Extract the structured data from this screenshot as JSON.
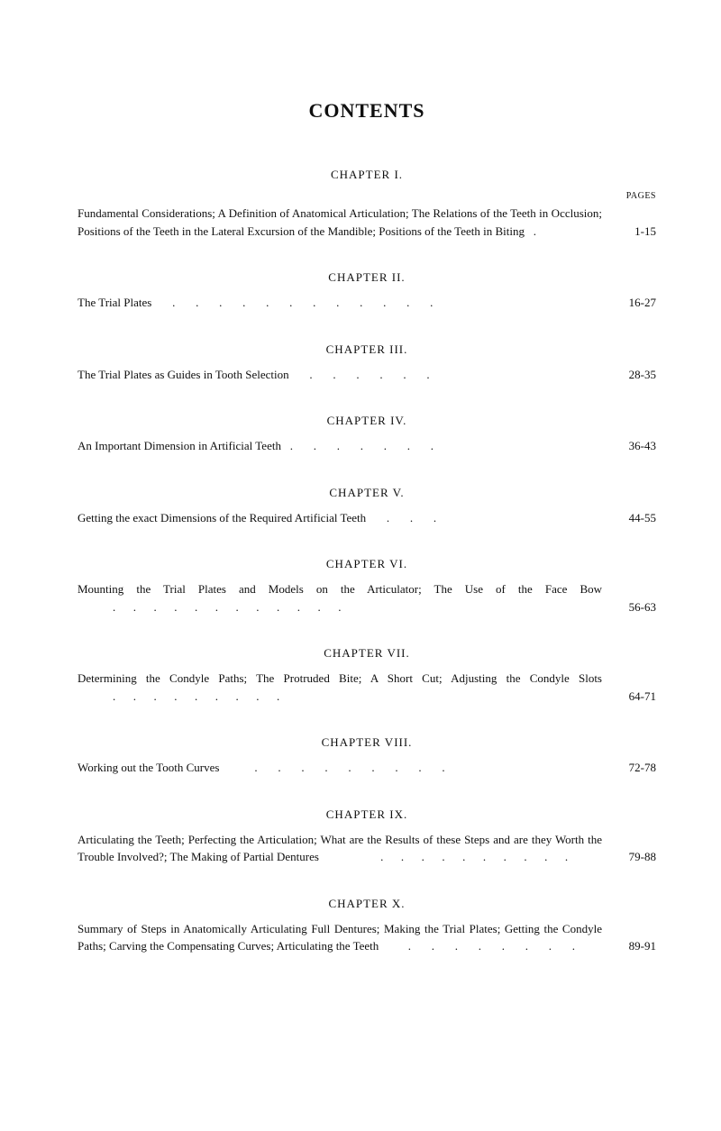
{
  "page": {
    "title": "CONTENTS",
    "pages_label": "PAGES",
    "background_color": "#ffffff",
    "text_color": "#0f0f0f",
    "title_fontsize": 22,
    "heading_fontsize": 13,
    "body_fontsize": 13,
    "pages_label_fontsize": 10,
    "font_family": "Century Schoolbook"
  },
  "chapters": [
    {
      "heading": "CHAPTER I.",
      "text_prefix": "Fundamental Considerations; A Definition of Anatomical Articulation; The Relations of the Teeth in Occlusion; Positions of the Teeth in the Lateral Excursion of the Mandible; Positions of the Teeth in Biting",
      "dots": "   .",
      "pages": "1-15"
    },
    {
      "heading": "CHAPTER II.",
      "text_prefix": "The Trial Plates",
      "dots": "       .       .       .       .       .       .       .       .       .       .       .       .",
      "pages": "16-27"
    },
    {
      "heading": "CHAPTER III.",
      "text_prefix": "The Trial Plates as Guides in Tooth Selection",
      "dots": "       .       .       .       .       .       .",
      "pages": "28-35"
    },
    {
      "heading": "CHAPTER IV.",
      "text_prefix": "An Important Dimension in Artificial Teeth",
      "dots": "   .       .       .       .       .       .       .",
      "pages": "36-43"
    },
    {
      "heading": "CHAPTER V.",
      "text_prefix": "Getting the exact Dimensions of the Required Artificial Teeth",
      "dots": "       .       .       .",
      "pages": "44-55"
    },
    {
      "heading": "CHAPTER VI.",
      "text_prefix": "Mounting the Trial Plates and Models on the Articulator; The Use of the Face Bow",
      "dots": "            .      .      .      .      .      .      .      .      .      .      .      .",
      "pages": "56-63"
    },
    {
      "heading": "CHAPTER VII.",
      "text_prefix": "Determining the Condyle Paths; The Protruded Bite; A Short Cut; Adjusting the Condyle Slots",
      "dots": "            .      .      .      .      .      .      .      .      .",
      "pages": "64-71"
    },
    {
      "heading": "CHAPTER VIII.",
      "text_prefix": "Working out the Tooth Curves",
      "dots": "            .       .       .       .       .       .       .       .       .",
      "pages": "72-78"
    },
    {
      "heading": "CHAPTER IX.",
      "text_prefix": "Articulating the Teeth; Perfecting the Articulation; What are the Results of these Steps and are they Worth the Trouble Involved?; The Making of Partial Dentures",
      "dots": "                     .      .      .      .      .      .      .      .      .      .",
      "pages": "79-88"
    },
    {
      "heading": "CHAPTER X.",
      "text_prefix": "Summary of Steps in Anatomically Articulating Full Dentures; Making the Trial Plates; Getting the Condyle Paths; Carving the Compensating Curves; Articulating the Teeth",
      "dots": "          .       .       .       .       .       .       .       .",
      "pages": "89-91"
    }
  ]
}
